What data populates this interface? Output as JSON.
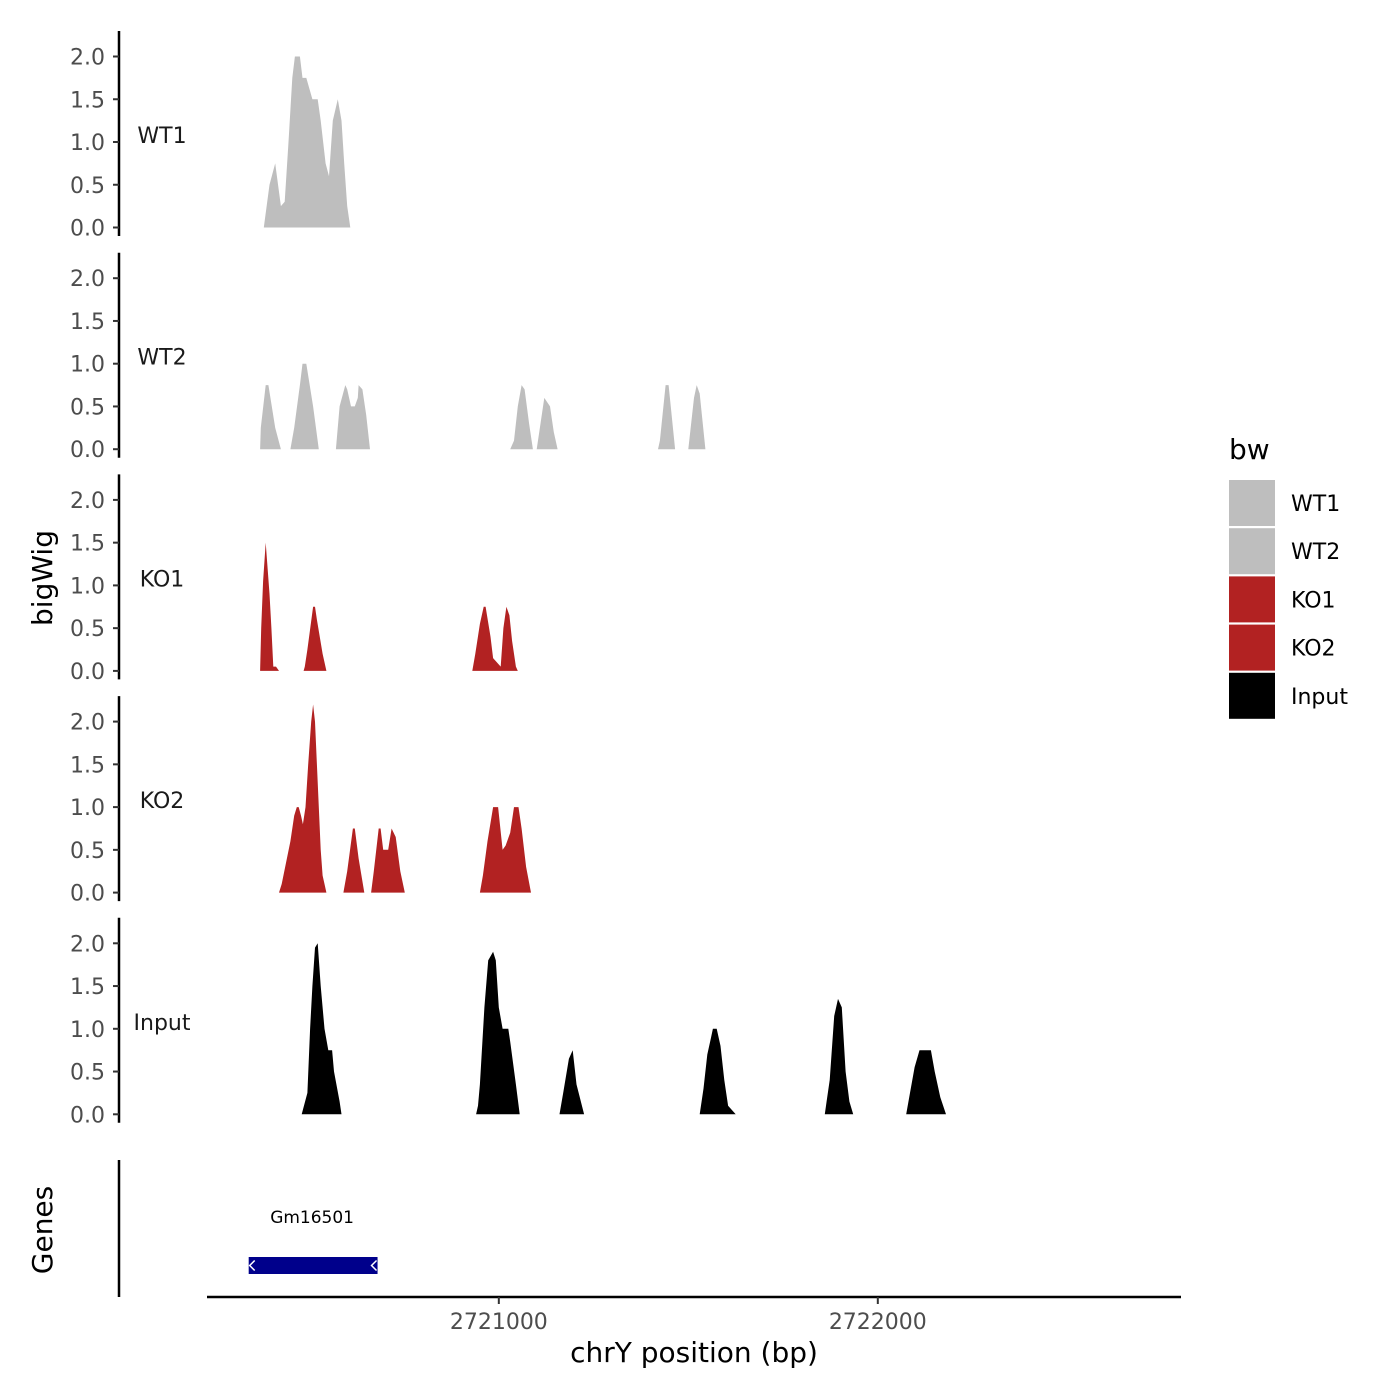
{
  "chart_data": {
    "type": "area",
    "title": "",
    "ylabel": "bigWig",
    "xlabel": "chrY position (bp)",
    "gene_panel_label": "Genes",
    "xlim": [
      2720230,
      2722800
    ],
    "ylim": [
      0,
      2.25
    ],
    "y_ticks": [
      0,
      0.5,
      1,
      1.5,
      2
    ],
    "y_tick_labels": [
      "0.0",
      "0.5",
      "1.0",
      "1.5",
      "2.0"
    ],
    "x_ticks": [
      2721000,
      2722000
    ],
    "x_tick_labels": [
      "2721000",
      "2722000"
    ],
    "legend": {
      "title": "bw",
      "position": "right",
      "entries": [
        {
          "label": "WT1",
          "color": "#bebebe"
        },
        {
          "label": "WT2",
          "color": "#bebebe"
        },
        {
          "label": "KO1",
          "color": "#b22222"
        },
        {
          "label": "KO2",
          "color": "#b22222"
        },
        {
          "label": "Input",
          "color": "#000000"
        }
      ]
    },
    "tracks": [
      {
        "name": "WT1",
        "color": "#bebebe",
        "segments": [
          [
            [
              2720380,
              0
            ],
            [
              2720395,
              0.5
            ],
            [
              2720410,
              0.75
            ],
            [
              2720425,
              0.25
            ],
            [
              2720435,
              0.3
            ],
            [
              2720445,
              1.0
            ],
            [
              2720455,
              1.75
            ],
            [
              2720462,
              2.0
            ],
            [
              2720475,
              2.0
            ],
            [
              2720482,
              1.75
            ],
            [
              2720492,
              1.75
            ],
            [
              2720508,
              1.5
            ],
            [
              2720522,
              1.5
            ],
            [
              2720530,
              1.25
            ],
            [
              2720543,
              0.75
            ],
            [
              2720552,
              0.6
            ],
            [
              2720562,
              1.25
            ],
            [
              2720575,
              1.5
            ],
            [
              2720585,
              1.25
            ],
            [
              2720592,
              0.75
            ],
            [
              2720600,
              0.25
            ],
            [
              2720608,
              0
            ]
          ]
        ]
      },
      {
        "name": "WT2",
        "color": "#bebebe",
        "segments": [
          [
            [
              2720370,
              0
            ],
            [
              2720372,
              0.25
            ],
            [
              2720385,
              0.75
            ],
            [
              2720392,
              0.75
            ],
            [
              2720410,
              0.25
            ],
            [
              2720425,
              0
            ]
          ],
          [
            [
              2720450,
              0
            ],
            [
              2720460,
              0.25
            ],
            [
              2720475,
              0.75
            ],
            [
              2720482,
              1.0
            ],
            [
              2720492,
              1.0
            ],
            [
              2720510,
              0.5
            ],
            [
              2720525,
              0
            ]
          ],
          [
            [
              2720570,
              0
            ],
            [
              2720580,
              0.5
            ],
            [
              2720595,
              0.75
            ],
            [
              2720600,
              0.7
            ],
            [
              2720610,
              0.5
            ],
            [
              2720620,
              0.5
            ],
            [
              2720628,
              0.6
            ],
            [
              2720630,
              0.75
            ],
            [
              2720640,
              0.7
            ],
            [
              2720650,
              0.4
            ],
            [
              2720660,
              0
            ]
          ],
          [
            [
              2721030,
              0
            ],
            [
              2721040,
              0.1
            ],
            [
              2721050,
              0.5
            ],
            [
              2721060,
              0.75
            ],
            [
              2721068,
              0.7
            ],
            [
              2721080,
              0.3
            ],
            [
              2721090,
              0
            ]
          ],
          [
            [
              2721100,
              0
            ],
            [
              2721110,
              0.3
            ],
            [
              2721120,
              0.6
            ],
            [
              2721135,
              0.5
            ],
            [
              2721145,
              0.2
            ],
            [
              2721155,
              0
            ]
          ],
          [
            [
              2721420,
              0
            ],
            [
              2721425,
              0.1
            ],
            [
              2721440,
              0.75
            ],
            [
              2721448,
              0.75
            ],
            [
              2721465,
              0
            ]
          ],
          [
            [
              2721500,
              0
            ],
            [
              2721515,
              0.6
            ],
            [
              2721522,
              0.75
            ],
            [
              2721530,
              0.65
            ],
            [
              2721545,
              0
            ]
          ]
        ]
      },
      {
        "name": "KO1",
        "color": "#b22222",
        "segments": [
          [
            [
              2720370,
              0
            ],
            [
              2720373,
              0.5
            ],
            [
              2720378,
              1.05
            ],
            [
              2720385,
              1.5
            ],
            [
              2720395,
              0.9
            ],
            [
              2720400,
              0.5
            ],
            [
              2720405,
              0.05
            ],
            [
              2720412,
              0.05
            ],
            [
              2720420,
              0
            ],
            [
              2720370,
              0
            ]
          ],
          [
            [
              2720485,
              0
            ],
            [
              2720488,
              0.05
            ],
            [
              2720495,
              0.25
            ],
            [
              2720510,
              0.75
            ],
            [
              2720515,
              0.75
            ],
            [
              2720520,
              0.6
            ],
            [
              2720535,
              0.2
            ],
            [
              2720545,
              0
            ]
          ],
          [
            [
              2720930,
              0
            ],
            [
              2720938,
              0.2
            ],
            [
              2720950,
              0.55
            ],
            [
              2720960,
              0.75
            ],
            [
              2720965,
              0.75
            ],
            [
              2720978,
              0.4
            ],
            [
              2720985,
              0.15
            ],
            [
              2721005,
              0.05
            ],
            [
              2721012,
              0.5
            ],
            [
              2721020,
              0.75
            ],
            [
              2721028,
              0.65
            ],
            [
              2721035,
              0.35
            ],
            [
              2721045,
              0.05
            ],
            [
              2721050,
              0
            ]
          ]
        ]
      },
      {
        "name": "KO2",
        "color": "#b22222",
        "segments": [
          [
            [
              2720420,
              0
            ],
            [
              2720427,
              0.1
            ],
            [
              2720450,
              0.6
            ],
            [
              2720460,
              0.9
            ],
            [
              2720467,
              1.0
            ],
            [
              2720472,
              1.0
            ],
            [
              2720478,
              0.9
            ],
            [
              2720483,
              0.8
            ],
            [
              2720490,
              1.0
            ],
            [
              2720497,
              1.5
            ],
            [
              2720505,
              2.0
            ],
            [
              2720510,
              2.2
            ],
            [
              2720515,
              2.0
            ],
            [
              2720520,
              1.5
            ],
            [
              2720530,
              0.5
            ],
            [
              2720535,
              0.2
            ],
            [
              2720540,
              0.1
            ],
            [
              2720545,
              0
            ]
          ],
          [
            [
              2720590,
              0
            ],
            [
              2720600,
              0.25
            ],
            [
              2720615,
              0.75
            ],
            [
              2720620,
              0.75
            ],
            [
              2720630,
              0.4
            ],
            [
              2720645,
              0
            ]
          ],
          [
            [
              2720663,
              0
            ],
            [
              2720670,
              0.25
            ],
            [
              2720683,
              0.75
            ],
            [
              2720688,
              0.75
            ],
            [
              2720695,
              0.5
            ],
            [
              2720708,
              0.5
            ],
            [
              2720717,
              0.75
            ],
            [
              2720728,
              0.65
            ],
            [
              2720740,
              0.25
            ],
            [
              2720752,
              0
            ]
          ],
          [
            [
              2720950,
              0
            ],
            [
              2720958,
              0.2
            ],
            [
              2720970,
              0.6
            ],
            [
              2720985,
              1.0
            ],
            [
              2720998,
              1.0
            ],
            [
              2721010,
              0.5
            ],
            [
              2721018,
              0.55
            ],
            [
              2721030,
              0.7
            ],
            [
              2721040,
              1.0
            ],
            [
              2721052,
              1.0
            ],
            [
              2721060,
              0.75
            ],
            [
              2721072,
              0.3
            ],
            [
              2721085,
              0
            ]
          ]
        ]
      },
      {
        "name": "Input",
        "color": "#000000",
        "segments": [
          [
            [
              2720480,
              0
            ],
            [
              2720495,
              0.25
            ],
            [
              2720502,
              1.0
            ],
            [
              2720508,
              1.5
            ],
            [
              2720515,
              1.95
            ],
            [
              2720522,
              2.0
            ],
            [
              2720530,
              1.5
            ],
            [
              2720540,
              1.0
            ],
            [
              2720550,
              0.75
            ],
            [
              2720560,
              0.75
            ],
            [
              2720565,
              0.5
            ],
            [
              2720580,
              0.15
            ],
            [
              2720585,
              0
            ]
          ],
          [
            [
              2720940,
              0
            ],
            [
              2720945,
              0.1
            ],
            [
              2720950,
              0.35
            ],
            [
              2720962,
              1.25
            ],
            [
              2720972,
              1.8
            ],
            [
              2720985,
              1.9
            ],
            [
              2720992,
              1.8
            ],
            [
              2721000,
              1.25
            ],
            [
              2721010,
              1.0
            ],
            [
              2721025,
              1.0
            ],
            [
              2721030,
              0.85
            ],
            [
              2721045,
              0.35
            ],
            [
              2721055,
              0
            ]
          ],
          [
            [
              2721160,
              0
            ],
            [
              2721170,
              0.25
            ],
            [
              2721185,
              0.65
            ],
            [
              2721195,
              0.75
            ],
            [
              2721205,
              0.35
            ],
            [
              2721225,
              0
            ]
          ],
          [
            [
              2721530,
              0
            ],
            [
              2721540,
              0.3
            ],
            [
              2721550,
              0.7
            ],
            [
              2721560,
              0.9
            ],
            [
              2721565,
              1.0
            ],
            [
              2721575,
              1.0
            ],
            [
              2721585,
              0.8
            ],
            [
              2721595,
              0.4
            ],
            [
              2721605,
              0.1
            ],
            [
              2721625,
              0
            ]
          ],
          [
            [
              2721860,
              0
            ],
            [
              2721865,
              0.15
            ],
            [
              2721873,
              0.4
            ],
            [
              2721885,
              1.15
            ],
            [
              2721895,
              1.35
            ],
            [
              2721905,
              1.25
            ],
            [
              2721915,
              0.5
            ],
            [
              2721925,
              0.15
            ],
            [
              2721935,
              0
            ]
          ],
          [
            [
              2722075,
              0
            ],
            [
              2722085,
              0.25
            ],
            [
              2722097,
              0.55
            ],
            [
              2722110,
              0.75
            ],
            [
              2722140,
              0.75
            ],
            [
              2722150,
              0.5
            ],
            [
              2722165,
              0.2
            ],
            [
              2722180,
              0
            ]
          ]
        ]
      }
    ],
    "genes": [
      {
        "name": "Gm16501",
        "start": 2720340,
        "end": 2720680,
        "strand": "-",
        "color": "#00008b"
      }
    ]
  }
}
